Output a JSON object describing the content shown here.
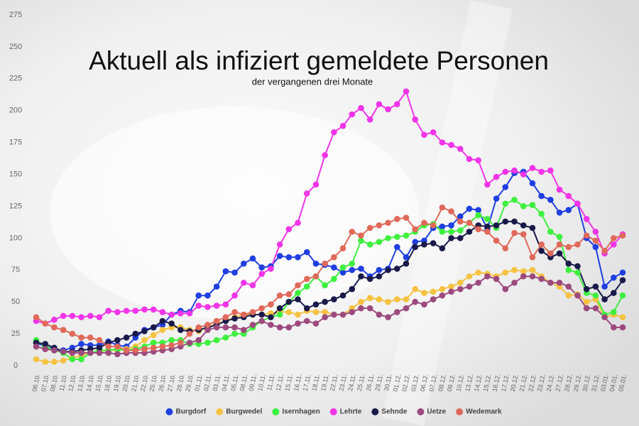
{
  "chart_data": {
    "type": "line",
    "title": "Aktuell als infiziert gemeldete Personen",
    "subtitle": "der vergangenen drei Monate",
    "categories": [
      "06.10.",
      "07.10.",
      "08.10.",
      "11.10.",
      "12.10.",
      "13.10.",
      "14.10.",
      "15.10.",
      "18.10.",
      "19.10.",
      "20.10.",
      "21.10.",
      "22.10.",
      "25.10.",
      "26.10.",
      "27.10.",
      "28.10.",
      "29.10.",
      "01.11.",
      "02.11.",
      "03.11.",
      "04.11.",
      "05.11.",
      "08.11.",
      "09.11.",
      "10.11.",
      "11.11.",
      "12.11.",
      "15.11.",
      "16.11.",
      "17.11.",
      "18.11.",
      "19.11.",
      "22.11.",
      "23.11.",
      "24.11.",
      "25.11.",
      "26.11.",
      "29.11.",
      "30.11.",
      "01.12.",
      "02.12.",
      "03.12.",
      "06.12.",
      "07.12.",
      "08.12.",
      "09.12.",
      "10.12.",
      "13.12.",
      "14.12.",
      "15.12.",
      "16.12.",
      "17.12.",
      "20.12.",
      "21.12.",
      "22.12.",
      "23.12.",
      "24.12.",
      "27.12.",
      "28.12.",
      "29.12.",
      "30.12.",
      "31.12.",
      "03.01.",
      "04.01.",
      "05.01."
    ],
    "series": [
      {
        "name": "Burgdorf",
        "color": "#1f3fe0",
        "values": [
          18,
          15,
          13,
          12,
          14,
          17,
          16,
          16,
          19,
          16,
          15,
          22,
          28,
          30,
          32,
          40,
          43,
          42,
          55,
          55,
          62,
          74,
          73,
          80,
          84,
          77,
          78,
          86,
          85,
          85,
          89,
          80,
          79,
          77,
          73,
          75,
          76,
          70,
          75,
          76,
          93,
          85,
          97,
          98,
          108,
          109,
          110,
          117,
          123,
          122,
          107,
          131,
          140,
          151,
          152,
          143,
          133,
          130,
          120,
          122,
          127,
          100,
          93,
          62,
          69,
          73
        ]
      },
      {
        "name": "Burgwedel",
        "color": "#f5c242",
        "values": [
          5,
          3,
          3,
          4,
          6,
          8,
          10,
          11,
          12,
          12,
          13,
          15,
          20,
          24,
          28,
          30,
          30,
          28,
          27,
          30,
          33,
          35,
          38,
          40,
          40,
          40,
          41,
          42,
          42,
          40,
          43,
          42,
          42,
          40,
          40,
          45,
          50,
          53,
          52,
          50,
          52,
          52,
          60,
          57,
          58,
          60,
          62,
          65,
          70,
          73,
          72,
          70,
          73,
          75,
          74,
          75,
          70,
          65,
          62,
          55,
          56,
          50,
          52,
          38,
          40,
          38
        ]
      },
      {
        "name": "Isernhagen",
        "color": "#3ef03e",
        "values": [
          20,
          15,
          12,
          10,
          5,
          5,
          10,
          12,
          12,
          13,
          12,
          13,
          15,
          18,
          18,
          20,
          20,
          17,
          17,
          18,
          20,
          22,
          25,
          25,
          30,
          35,
          38,
          40,
          50,
          57,
          62,
          70,
          63,
          68,
          77,
          80,
          98,
          95,
          97,
          100,
          101,
          102,
          105,
          110,
          111,
          105,
          105,
          106,
          112,
          118,
          115,
          108,
          127,
          130,
          125,
          126,
          119,
          105,
          101,
          75,
          73,
          57,
          55,
          40,
          42,
          55
        ]
      },
      {
        "name": "Lehrte",
        "color": "#f035e8",
        "values": [
          35,
          33,
          36,
          39,
          39,
          38,
          39,
          38,
          43,
          42,
          43,
          43,
          44,
          44,
          42,
          40,
          41,
          41,
          47,
          46,
          47,
          48,
          55,
          65,
          63,
          72,
          76,
          95,
          107,
          112,
          135,
          142,
          165,
          183,
          188,
          197,
          202,
          193,
          205,
          201,
          205,
          215,
          193,
          181,
          183,
          175,
          173,
          170,
          162,
          161,
          142,
          148,
          152,
          153,
          150,
          155,
          152,
          153,
          138,
          133,
          127,
          115,
          105,
          88,
          95,
          103
        ]
      },
      {
        "name": "Sehnde",
        "color": "#1a1a4a",
        "values": [
          18,
          17,
          14,
          11,
          11,
          12,
          13,
          14,
          18,
          20,
          22,
          25,
          27,
          30,
          35,
          33,
          28,
          27,
          28,
          30,
          32,
          35,
          37,
          38,
          40,
          40,
          38,
          45,
          50,
          52,
          45,
          48,
          50,
          52,
          55,
          60,
          70,
          68,
          70,
          75,
          76,
          80,
          93,
          95,
          96,
          92,
          100,
          100,
          105,
          110,
          109,
          110,
          113,
          113,
          110,
          108,
          90,
          85,
          88,
          80,
          78,
          60,
          62,
          52,
          57,
          67
        ]
      },
      {
        "name": "Uetze",
        "color": "#9c4a7e",
        "values": [
          15,
          13,
          12,
          11,
          10,
          10,
          10,
          10,
          10,
          9,
          10,
          10,
          10,
          11,
          12,
          13,
          15,
          18,
          20,
          28,
          30,
          30,
          30,
          28,
          32,
          35,
          32,
          30,
          30,
          33,
          35,
          33,
          38,
          40,
          40,
          42,
          45,
          45,
          40,
          38,
          42,
          45,
          50,
          48,
          52,
          55,
          58,
          60,
          62,
          65,
          70,
          68,
          60,
          65,
          70,
          70,
          68,
          65,
          65,
          62,
          55,
          45,
          45,
          38,
          30,
          30
        ]
      },
      {
        "name": "Wedemark",
        "color": "#e0695a",
        "values": [
          38,
          33,
          30,
          28,
          25,
          22,
          22,
          20,
          15,
          15,
          12,
          12,
          13,
          14,
          15,
          16,
          18,
          25,
          30,
          32,
          35,
          38,
          42,
          40,
          42,
          45,
          48,
          55,
          56,
          63,
          68,
          70,
          80,
          85,
          92,
          105,
          102,
          108,
          110,
          112,
          115,
          116,
          107,
          112,
          110,
          124,
          121,
          113,
          112,
          107,
          105,
          98,
          92,
          104,
          103,
          85,
          95,
          88,
          95,
          93,
          95,
          102,
          98,
          90,
          100,
          102
        ]
      }
    ],
    "ylim": [
      0,
      275
    ],
    "yticks": [
      0,
      25,
      50,
      75,
      100,
      125,
      150,
      175,
      200,
      225,
      250,
      275
    ],
    "grid": false,
    "legend": "bottom"
  }
}
